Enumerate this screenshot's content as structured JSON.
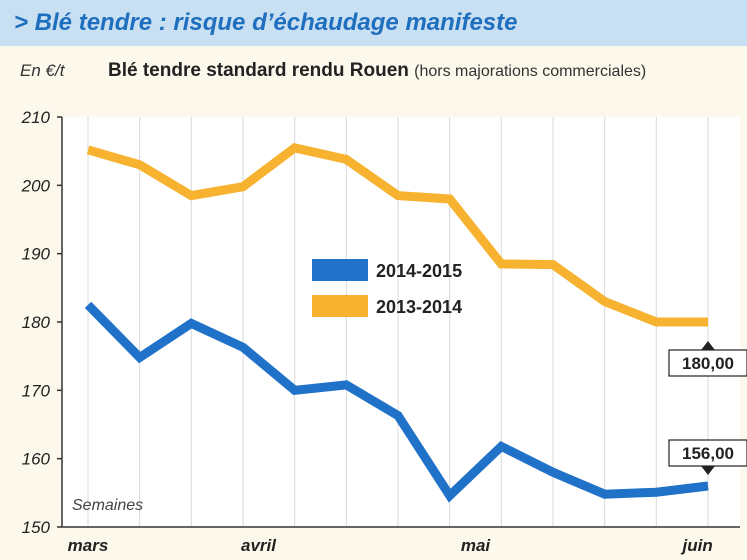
{
  "header": {
    "title": "> Blé tendre : risque d’échaudage manifeste"
  },
  "chart_data": {
    "type": "line",
    "title": "Blé tendre standard rendu Rouen",
    "subtitle": "(hors majorations commerciales)",
    "ylabel": "En €/t",
    "xlabel": "Semaines",
    "ylim": [
      150,
      210
    ],
    "yticks": [
      150,
      160,
      170,
      180,
      190,
      200,
      210
    ],
    "xtick_labels": [
      {
        "label": "mars",
        "week": 0
      },
      {
        "label": "avril",
        "week": 3.3
      },
      {
        "label": "mai",
        "week": 7.5
      },
      {
        "label": "juin",
        "week": 11.8
      }
    ],
    "x": [
      0,
      1,
      2,
      3,
      4,
      5,
      6,
      7,
      8,
      9,
      10,
      11,
      12
    ],
    "grid": "vertical",
    "legend_position": "center",
    "series": [
      {
        "name": "2014-2015",
        "color": "#1f72c8",
        "values": [
          182.5,
          174.8,
          179.8,
          176.3,
          170,
          170.8,
          166.3,
          154.6,
          161.8,
          158,
          154.8,
          155.1,
          156
        ],
        "end_label": "156,00"
      },
      {
        "name": "2013-2014",
        "color": "#f7b330",
        "values": [
          205.2,
          203,
          198.5,
          199.8,
          205.5,
          203.8,
          198.5,
          198,
          188.5,
          188.4,
          183,
          180,
          180
        ],
        "end_label": "180,00"
      }
    ]
  }
}
